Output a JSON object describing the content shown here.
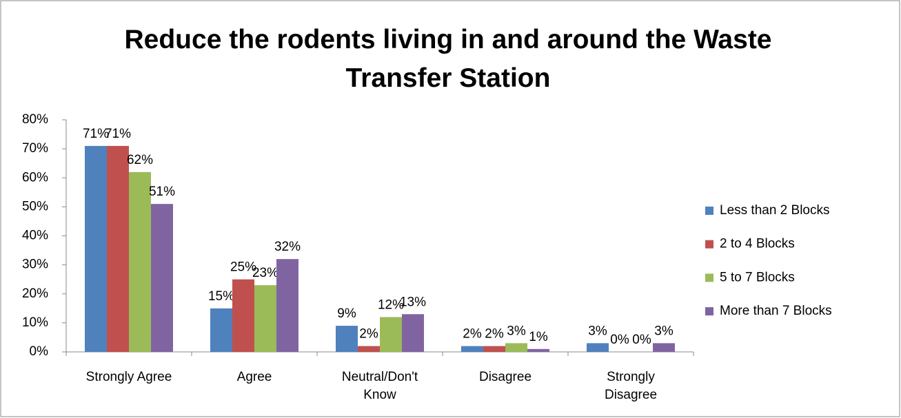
{
  "chart_data": {
    "type": "bar",
    "title": "Reduce the rodents living in and around the Waste Transfer Station",
    "categories": [
      "Strongly Agree",
      "Agree",
      "Neutral/Don't Know",
      "Disagree",
      "Strongly Disagree"
    ],
    "series": [
      {
        "name": "Less than 2 Blocks",
        "color": "#4f81bd",
        "values": [
          71,
          15,
          9,
          2,
          3
        ],
        "value_labels": [
          "71%",
          "15%",
          "9%",
          "2%",
          "3%"
        ]
      },
      {
        "name": "2 to 4 Blocks",
        "color": "#c0504d",
        "values": [
          71,
          25,
          2,
          2,
          0
        ],
        "value_labels": [
          "71%",
          "25%",
          "2%",
          "2%",
          "0%"
        ]
      },
      {
        "name": "5 to 7 Blocks",
        "color": "#9bbb59",
        "values": [
          62,
          23,
          12,
          3,
          0
        ],
        "value_labels": [
          "62%",
          "23%",
          "12%",
          "3%",
          "0%"
        ]
      },
      {
        "name": "More than 7 Blocks",
        "color": "#8064a2",
        "values": [
          51,
          32,
          13,
          1,
          3
        ],
        "value_labels": [
          "51%",
          "32%",
          "13%",
          "1%",
          "3%"
        ]
      }
    ],
    "ylim": [
      0,
      80
    ],
    "yticks": [
      {
        "value": 0,
        "label": "0%"
      },
      {
        "value": 10,
        "label": "10%"
      },
      {
        "value": 20,
        "label": "20%"
      },
      {
        "value": 30,
        "label": "30%"
      },
      {
        "value": 40,
        "label": "40%"
      },
      {
        "value": 50,
        "label": "50%"
      },
      {
        "value": 60,
        "label": "60%"
      },
      {
        "value": 70,
        "label": "70%"
      },
      {
        "value": 80,
        "label": "80%"
      }
    ],
    "legend": "right"
  }
}
